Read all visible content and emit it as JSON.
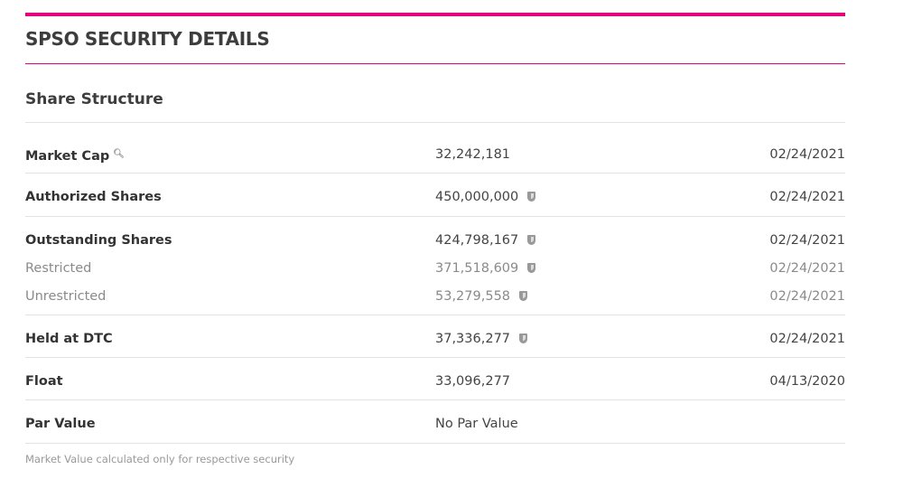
{
  "title": "SPSO SECURITY DETAILS",
  "section": "Share Structure",
  "colors": {
    "accent": "#e5007d"
  },
  "rows": [
    {
      "label": "Market Cap",
      "value": "32,242,181",
      "date": "02/24/2021",
      "icon": "magnifier-icon"
    },
    {
      "label": "Authorized Shares",
      "value": "450,000,000",
      "date": "02/24/2021",
      "icon": "shield-icon"
    },
    {
      "label": "Outstanding Shares",
      "value": "424,798,167",
      "date": "02/24/2021",
      "icon": "shield-icon"
    },
    {
      "label": "Restricted",
      "value": "371,518,609",
      "date": "02/24/2021",
      "icon": "shield-icon"
    },
    {
      "label": "Unrestricted",
      "value": "53,279,558",
      "date": "02/24/2021",
      "icon": "shield-icon"
    },
    {
      "label": "Held at DTC",
      "value": "37,336,277",
      "date": "02/24/2021",
      "icon": "shield-icon"
    },
    {
      "label": "Float",
      "value": "33,096,277",
      "date": "04/13/2020"
    },
    {
      "label": "Par Value",
      "value": "No Par Value"
    }
  ],
  "footnote": "Market Value calculated only for respective security"
}
